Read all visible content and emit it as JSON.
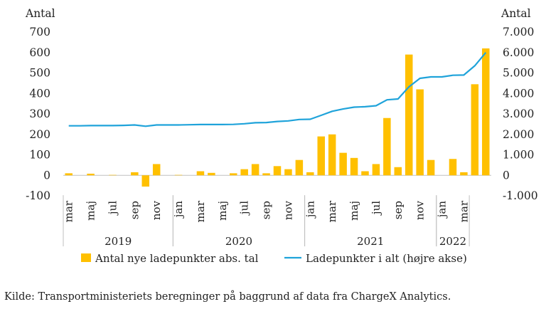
{
  "chart_data": {
    "type": "bar+line",
    "left_axis": {
      "label": "Antal",
      "min": -100,
      "max": 700,
      "step": 100,
      "ticks": [
        "-100",
        "0",
        "100",
        "200",
        "300",
        "400",
        "500",
        "600",
        "700"
      ]
    },
    "right_axis": {
      "label": "Antal",
      "min": -1000,
      "max": 7000,
      "step": 1000,
      "ticks": [
        "-1.000",
        "0",
        "1.000",
        "2.000",
        "3.000",
        "4.000",
        "5.000",
        "6.000",
        "7.000"
      ]
    },
    "month_labels": [
      "mar",
      "maj",
      "jul",
      "sep",
      "nov",
      "jan",
      "mar",
      "maj",
      "jul",
      "sep",
      "nov",
      "jan",
      "mar",
      "maj",
      "jul",
      "sep",
      "nov",
      "jan",
      "mar"
    ],
    "month_label_index": [
      0,
      2,
      4,
      6,
      8,
      10,
      12,
      14,
      16,
      18,
      20,
      22,
      24,
      26,
      28,
      30,
      32,
      34,
      36
    ],
    "years": [
      {
        "label": "2019",
        "start": 0,
        "end": 10
      },
      {
        "label": "2020",
        "start": 10,
        "end": 22
      },
      {
        "label": "2021",
        "start": 22,
        "end": 34
      },
      {
        "label": "2022",
        "start": 34,
        "end": 37
      }
    ],
    "series": [
      {
        "name": "Antal nye ladepunkter abs. tal",
        "axis": "left",
        "kind": "bar",
        "color": "#FFC000",
        "values": [
          10,
          0,
          8,
          0,
          2,
          0,
          15,
          -55,
          55,
          0,
          2,
          0,
          20,
          12,
          0,
          10,
          30,
          55,
          10,
          45,
          30,
          75,
          15,
          190,
          200,
          110,
          85,
          20,
          55,
          280,
          40,
          590,
          420,
          75,
          0,
          80,
          15,
          445,
          620
        ]
      },
      {
        "name": "Ladepunkter i alt (højre akse)",
        "axis": "right",
        "kind": "line",
        "color": "#1FA3DA",
        "values": [
          2420,
          2420,
          2430,
          2430,
          2430,
          2440,
          2460,
          2400,
          2460,
          2460,
          2460,
          2470,
          2480,
          2480,
          2480,
          2490,
          2520,
          2570,
          2580,
          2630,
          2660,
          2730,
          2740,
          2930,
          3130,
          3240,
          3330,
          3350,
          3400,
          3690,
          3730,
          4320,
          4740,
          4810,
          4810,
          4890,
          4900,
          5350,
          6000
        ]
      }
    ],
    "legend": {
      "position": "bottom"
    }
  },
  "source": "Kilde: Transportministeriets beregninger på baggrund af data fra ChargeX Analytics."
}
